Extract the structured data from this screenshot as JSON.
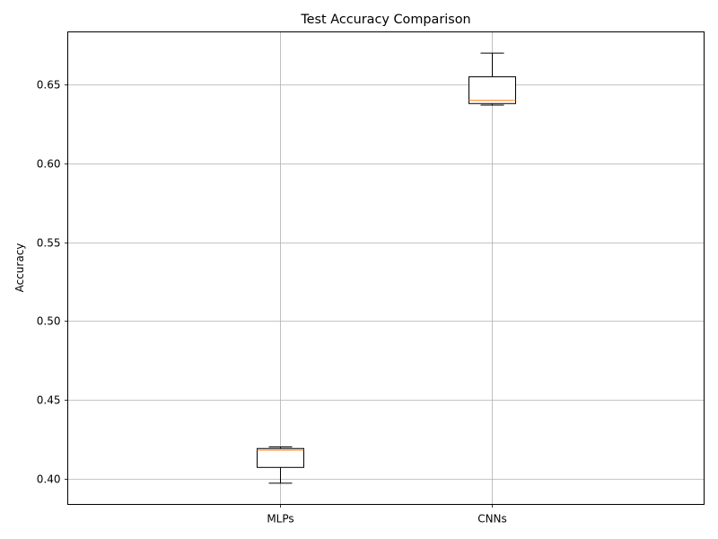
{
  "chart_data": {
    "type": "box",
    "title": "Test Accuracy Comparison",
    "xlabel": "",
    "ylabel": "Accuracy",
    "categories": [
      "MLPs",
      "CNNs"
    ],
    "boxes": [
      {
        "category": "MLPs",
        "whisker_low": 0.397,
        "q1": 0.407,
        "median": 0.418,
        "q3": 0.419,
        "whisker_high": 0.42
      },
      {
        "category": "CNNs",
        "whisker_low": 0.637,
        "q1": 0.638,
        "median": 0.64,
        "q3": 0.655,
        "whisker_high": 0.67
      }
    ],
    "ylim": [
      0.3835,
      0.6835
    ],
    "yticks": [
      0.4,
      0.45,
      0.5,
      0.55,
      0.6,
      0.65
    ],
    "ytick_labels": [
      "0.40",
      "0.45",
      "0.50",
      "0.55",
      "0.60",
      "0.65"
    ],
    "grid": true,
    "colors": {
      "box": "#000000",
      "median": "#ff7f0e",
      "grid": "#b0b0b0"
    }
  }
}
